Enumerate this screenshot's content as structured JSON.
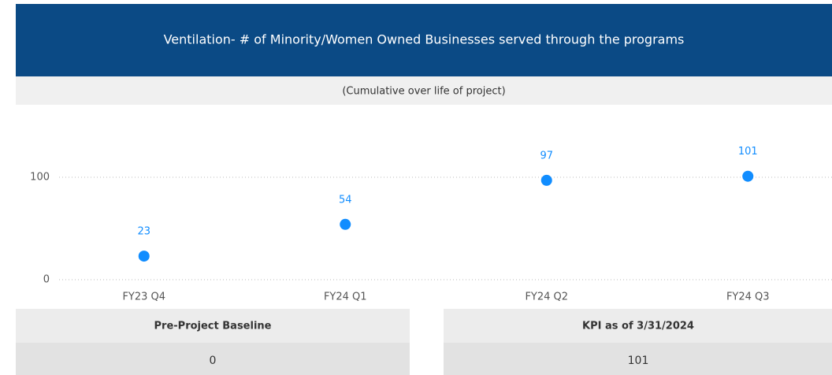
{
  "header": {
    "title": "Ventilation- # of Minority/Women Owned Businesses served through the programs",
    "subtitle": "(Cumulative over life of project)"
  },
  "chart_data": {
    "type": "scatter",
    "categories": [
      "FY23 Q4",
      "FY24 Q1",
      "FY24 Q2",
      "FY24 Q3"
    ],
    "values": [
      23,
      54,
      97,
      101
    ],
    "color": "#118dff",
    "ylim": [
      0,
      150
    ],
    "yticks": [
      0,
      100
    ],
    "grid": true
  },
  "cards": [
    {
      "label": "Pre-Project Baseline",
      "value": 0
    },
    {
      "label": "KPI as of 3/31/2024",
      "value": 101
    }
  ]
}
